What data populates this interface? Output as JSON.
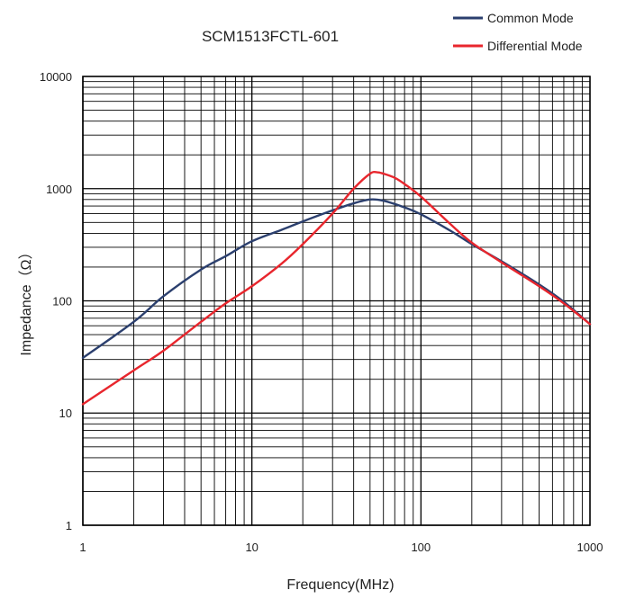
{
  "chart_data": {
    "type": "line",
    "title": "SCM1513FCTL-601",
    "xlabel": "Frequency(MHz)",
    "ylabel": "Impedance（Ω）",
    "xscale": "log",
    "yscale": "log",
    "xlim": [
      1,
      1000
    ],
    "ylim": [
      1,
      10000
    ],
    "x_ticks": [
      "1",
      "10",
      "100",
      "1000"
    ],
    "y_ticks": [
      "1",
      "10",
      "100",
      "1000",
      "10000"
    ],
    "grid": true,
    "legend_position": "top-right",
    "series": [
      {
        "name": "Common Mode",
        "color": "#2b3f6e",
        "points": [
          [
            1,
            31
          ],
          [
            2,
            65
          ],
          [
            3,
            110
          ],
          [
            5,
            190
          ],
          [
            7,
            250
          ],
          [
            10,
            340
          ],
          [
            15,
            430
          ],
          [
            20,
            510
          ],
          [
            30,
            640
          ],
          [
            40,
            740
          ],
          [
            50,
            800
          ],
          [
            60,
            780
          ],
          [
            80,
            680
          ],
          [
            100,
            590
          ],
          [
            150,
            420
          ],
          [
            200,
            320
          ],
          [
            300,
            225
          ],
          [
            500,
            140
          ],
          [
            700,
            98
          ],
          [
            1000,
            62
          ]
        ]
      },
      {
        "name": "Differential Mode",
        "color": "#e8262d",
        "points": [
          [
            1,
            12
          ],
          [
            2,
            24
          ],
          [
            3,
            36
          ],
          [
            5,
            65
          ],
          [
            7,
            95
          ],
          [
            10,
            135
          ],
          [
            15,
            215
          ],
          [
            20,
            320
          ],
          [
            30,
            600
          ],
          [
            40,
            1000
          ],
          [
            50,
            1360
          ],
          [
            55,
            1400
          ],
          [
            60,
            1360
          ],
          [
            70,
            1250
          ],
          [
            80,
            1100
          ],
          [
            100,
            850
          ],
          [
            150,
            480
          ],
          [
            200,
            330
          ],
          [
            300,
            220
          ],
          [
            500,
            135
          ],
          [
            700,
            95
          ],
          [
            1000,
            62
          ]
        ]
      }
    ]
  }
}
